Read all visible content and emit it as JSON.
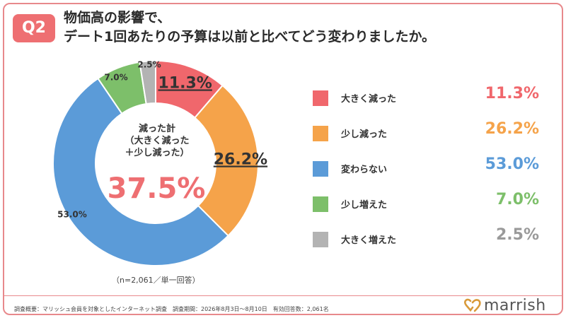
{
  "question": {
    "badge": "Q2",
    "title_line1": "物価高の影響で、",
    "title_line2": "デート1回あたりの予算は以前と比べてどう変わりましたか。"
  },
  "colors": {
    "badge": "#ee6f72",
    "accent": "#ee6f72",
    "frame": "#e8898c"
  },
  "center": {
    "line1": "減った計",
    "line2": "（大きく減った",
    "line3": "＋少し減った）",
    "value": "37.5%"
  },
  "chart_data": {
    "type": "pie",
    "donut": true,
    "categories": [
      "大きく減った",
      "少し減った",
      "変わらない",
      "少し増えた",
      "大きく増えた"
    ],
    "values": [
      11.3,
      26.2,
      53.0,
      7.0,
      2.5
    ],
    "labels": [
      "11.3%",
      "26.2%",
      "53.0%",
      "7.0%",
      "2.5%"
    ],
    "colors": [
      "#f0676c",
      "#f5a34a",
      "#5b9bd8",
      "#7dbf6a",
      "#b3b3b3"
    ],
    "legend_position": "right"
  },
  "note": "（n=2,061／単一回答）",
  "survey": "調査概要：マリッシュ会員を対象としたインターネット調査　調査期間：2026年8月3日〜8月10日　有効回答数：2,061名",
  "logo": {
    "text": "marrish",
    "icon": "heart-rings-icon"
  }
}
